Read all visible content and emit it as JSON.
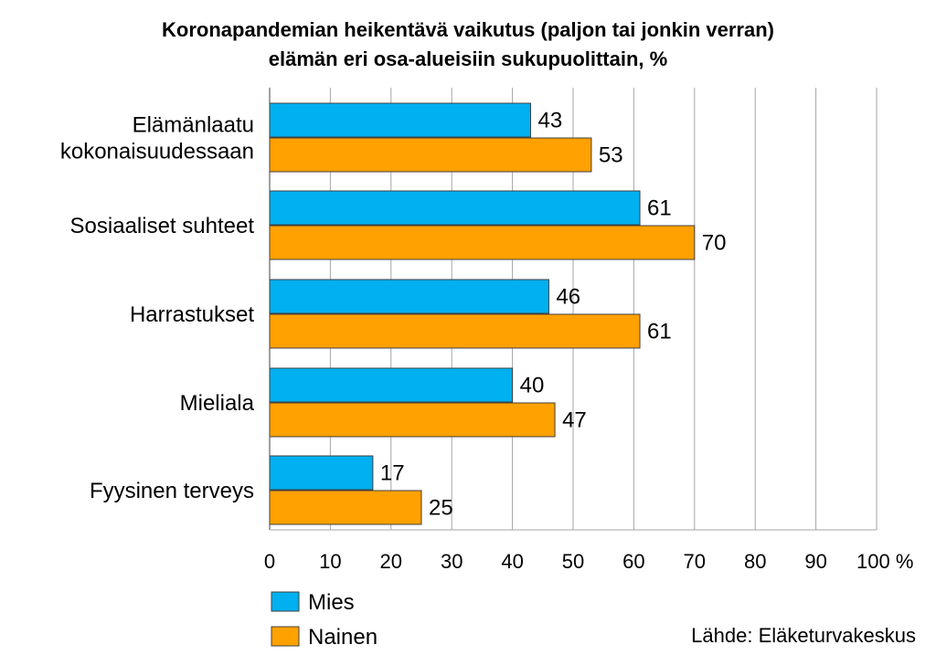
{
  "chart_data": {
    "type": "bar",
    "orientation": "horizontal",
    "title_line1": "Koronapandemian heikentävä vaikutus (paljon tai jonkin verran)",
    "title_line2": "elämän eri osa-alueisiin sukupuolittain, %",
    "categories": [
      [
        "Elämänlaatu",
        "kokonaisuudessaan"
      ],
      [
        "Sosiaaliset suhteet"
      ],
      [
        "Harrastukset"
      ],
      [
        "Mieliala"
      ],
      [
        "Fyysinen terveys"
      ]
    ],
    "series": [
      {
        "name": "Mies",
        "color": "#00B0F0",
        "values": [
          43,
          61,
          46,
          40,
          17
        ]
      },
      {
        "name": "Nainen",
        "color": "#FFA100",
        "values": [
          53,
          70,
          61,
          47,
          25
        ]
      }
    ],
    "xlim": [
      0,
      100
    ],
    "x_ticks": [
      "0",
      "10",
      "20",
      "30",
      "40",
      "50",
      "60",
      "70",
      "80",
      "90",
      "100 %"
    ],
    "grid": true,
    "legend_position": "bottom-left",
    "source": "Lähde: Eläketurvakeskus"
  }
}
